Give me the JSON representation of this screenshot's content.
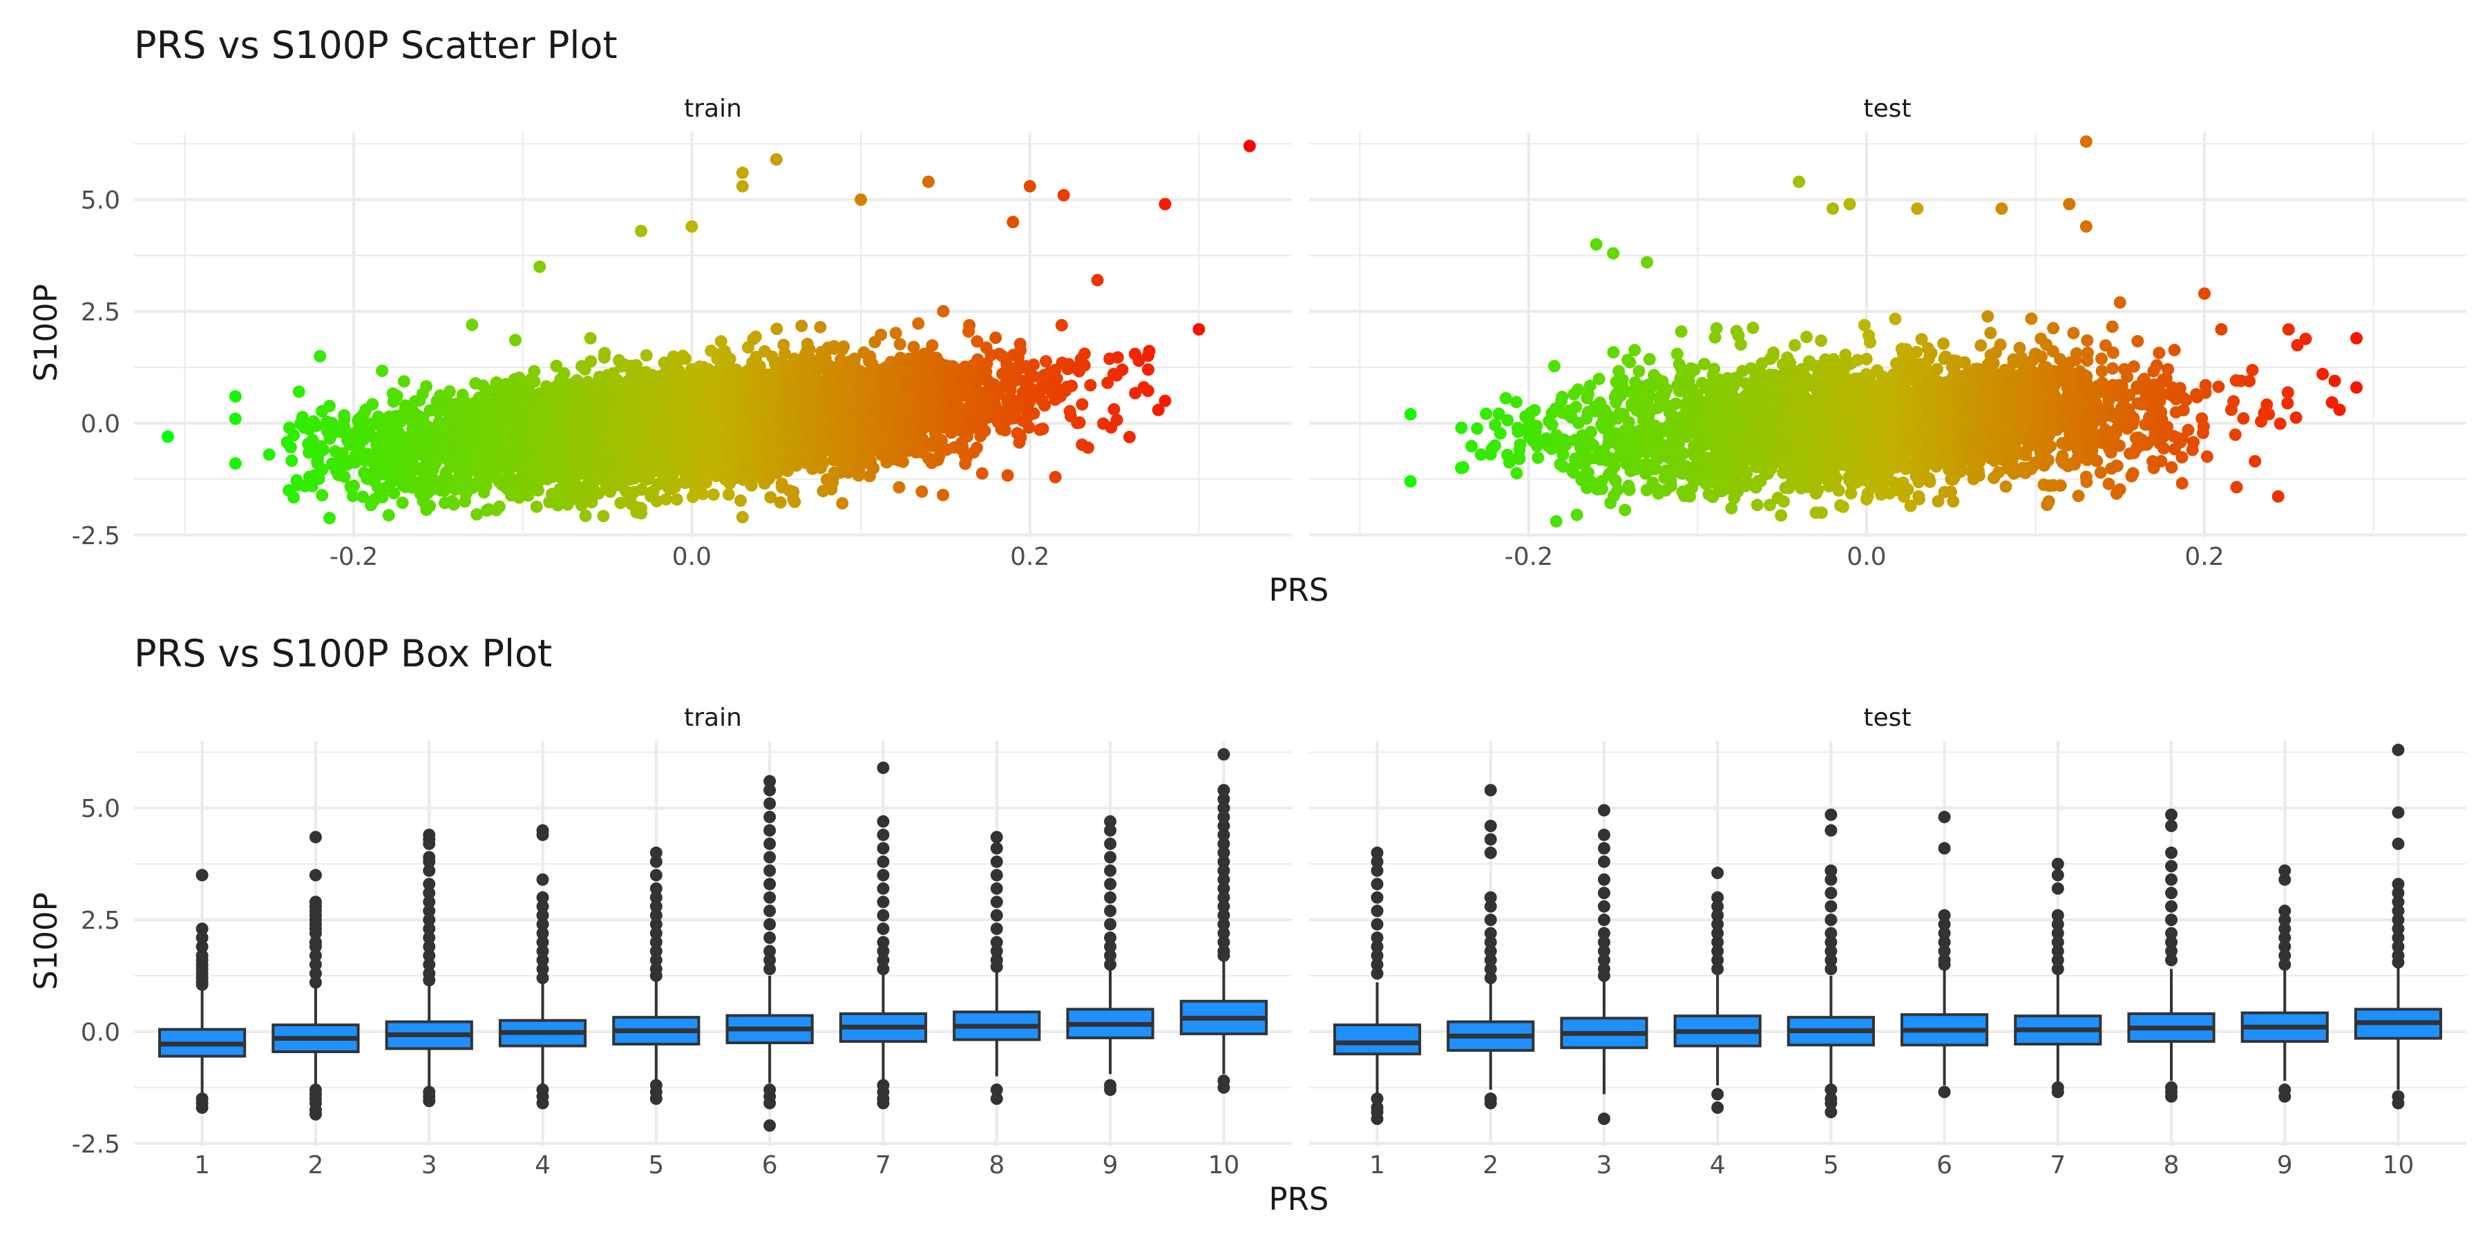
{
  "chart_data": [
    {
      "type": "scatter",
      "title": "PRS vs S100P Scatter Plot",
      "xlabel": "PRS",
      "ylabel": "S100P",
      "facets": [
        "train",
        "test"
      ],
      "xlim": [
        -0.33,
        0.355
      ],
      "ylim": [
        -2.55,
        6.5
      ],
      "x_ticks": [
        -0.2,
        0.0,
        0.2
      ],
      "x_tick_labels": [
        "-0.2",
        "0.0",
        "0.2"
      ],
      "y_ticks": [
        -2.5,
        0.0,
        2.5,
        5.0
      ],
      "y_tick_labels": [
        "-2.5",
        "0.0",
        "2.5",
        "5.0"
      ],
      "grid": true,
      "legend": "none",
      "color_scale": {
        "low": "#00ff00",
        "mid": "#c0b400",
        "high": "#ff0000",
        "domain": [
          -0.31,
          0.33
        ]
      },
      "panels": [
        {
          "name": "train",
          "approx_n": 6000,
          "bulk": {
            "slope": 3.0,
            "intercept": 0.0,
            "sd": 0.6,
            "x_mean": 0.0,
            "x_sd": 0.09
          },
          "points": [
            [
              -0.31,
              -0.3
            ],
            [
              -0.27,
              0.6
            ],
            [
              -0.27,
              0.1
            ],
            [
              -0.27,
              -0.9
            ],
            [
              -0.25,
              -0.7
            ],
            [
              -0.22,
              1.5
            ],
            [
              -0.2,
              -1.4
            ],
            [
              0.33,
              6.2
            ],
            [
              0.28,
              4.9
            ],
            [
              0.3,
              2.1
            ],
            [
              0.28,
              0.5
            ],
            [
              0.27,
              1.2
            ],
            [
              0.24,
              3.2
            ],
            [
              0.22,
              5.1
            ],
            [
              0.2,
              5.3
            ],
            [
              0.19,
              4.5
            ],
            [
              0.05,
              5.9
            ],
            [
              0.03,
              5.6
            ],
            [
              0.03,
              5.3
            ],
            [
              0.1,
              5.0
            ],
            [
              0.14,
              5.4
            ],
            [
              -0.09,
              3.5
            ],
            [
              -0.03,
              4.3
            ],
            [
              0.0,
              4.4
            ],
            [
              -0.03,
              -1.9
            ],
            [
              0.03,
              -2.1
            ],
            [
              0.06,
              -1.7
            ],
            [
              -0.13,
              2.2
            ],
            [
              -0.06,
              1.9
            ]
          ]
        },
        {
          "name": "test",
          "approx_n": 3000,
          "bulk": {
            "slope": 1.5,
            "intercept": 0.0,
            "sd": 0.7,
            "x_mean": 0.0,
            "x_sd": 0.09
          },
          "points": [
            [
              -0.27,
              0.2
            ],
            [
              -0.27,
              -1.3
            ],
            [
              -0.24,
              -1.0
            ],
            [
              -0.22,
              -0.5
            ],
            [
              0.29,
              1.9
            ],
            [
              0.29,
              0.8
            ],
            [
              0.27,
              1.1
            ],
            [
              0.28,
              0.3
            ],
            [
              0.13,
              6.3
            ],
            [
              0.12,
              4.9
            ],
            [
              0.13,
              4.4
            ],
            [
              -0.04,
              5.4
            ],
            [
              -0.02,
              4.8
            ],
            [
              -0.01,
              4.9
            ],
            [
              0.03,
              4.8
            ],
            [
              0.08,
              4.8
            ],
            [
              -0.16,
              4.0
            ],
            [
              -0.15,
              3.8
            ],
            [
              -0.13,
              3.6
            ],
            [
              0.2,
              2.9
            ],
            [
              0.15,
              2.7
            ],
            [
              0.21,
              2.1
            ],
            [
              -0.03,
              -2.0
            ],
            [
              -0.08,
              -1.9
            ],
            [
              0.0,
              -1.7
            ],
            [
              0.13,
              -1.2
            ],
            [
              0.17,
              -1.0
            ]
          ]
        }
      ]
    },
    {
      "type": "box",
      "title": "PRS vs S100P Box Plot",
      "xlabel": "PRS",
      "ylabel": "S100P",
      "facets": [
        "train",
        "test"
      ],
      "categories": [
        "1",
        "2",
        "3",
        "4",
        "5",
        "6",
        "7",
        "8",
        "9",
        "10"
      ],
      "ylim": [
        -2.55,
        6.5
      ],
      "y_ticks": [
        -2.5,
        0.0,
        2.5,
        5.0
      ],
      "y_tick_labels": [
        "-2.5",
        "0.0",
        "2.5",
        "5.0"
      ],
      "fill": "#1e90ff",
      "grid": true,
      "legend": "none",
      "panels": [
        {
          "name": "train",
          "boxes": [
            {
              "q1": -0.55,
              "median": -0.28,
              "q3": 0.05,
              "whisker_low": -1.4,
              "whisker_high": 0.95,
              "outliers_high": [
                3.5,
                2.3,
                2.1,
                1.9,
                1.7,
                1.6,
                1.5,
                1.4,
                1.3,
                1.2,
                1.1,
                1.05
              ],
              "outliers_low": [
                -1.5,
                -1.6,
                -1.7
              ]
            },
            {
              "q1": -0.45,
              "median": -0.15,
              "q3": 0.15,
              "whisker_low": -1.2,
              "whisker_high": 1.0,
              "outliers_high": [
                4.35,
                3.5,
                2.9,
                2.8,
                2.7,
                2.6,
                2.5,
                2.4,
                2.3,
                2.2,
                2.0,
                1.9,
                1.7,
                1.5,
                1.3,
                1.1
              ],
              "outliers_low": [
                -1.3,
                -1.4,
                -1.5,
                -1.6,
                -1.75,
                -1.85
              ]
            },
            {
              "q1": -0.38,
              "median": -0.07,
              "q3": 0.22,
              "whisker_low": -1.25,
              "whisker_high": 1.1,
              "outliers_high": [
                4.4,
                4.3,
                4.2,
                3.9,
                3.8,
                3.6,
                3.3,
                3.1,
                2.9,
                2.7,
                2.5,
                2.3,
                2.1,
                1.9,
                1.7,
                1.5,
                1.3,
                1.15
              ],
              "outliers_low": [
                -1.35,
                -1.45,
                -1.55
              ]
            },
            {
              "q1": -0.32,
              "median": -0.02,
              "q3": 0.25,
              "whisker_low": -1.2,
              "whisker_high": 1.1,
              "outliers_high": [
                4.5,
                4.4,
                3.4,
                3.0,
                2.8,
                2.6,
                2.4,
                2.2,
                2.0,
                1.8,
                1.6,
                1.4,
                1.2
              ],
              "outliers_low": [
                -1.3,
                -1.45,
                -1.6
              ]
            },
            {
              "q1": -0.28,
              "median": 0.02,
              "q3": 0.32,
              "whisker_low": -1.1,
              "whisker_high": 1.15,
              "outliers_high": [
                4.0,
                3.8,
                3.5,
                3.2,
                3.0,
                2.8,
                2.6,
                2.4,
                2.2,
                2.0,
                1.8,
                1.6,
                1.4,
                1.25
              ],
              "outliers_low": [
                -1.2,
                -1.35,
                -1.5
              ]
            },
            {
              "q1": -0.25,
              "median": 0.06,
              "q3": 0.36,
              "whisker_low": -1.15,
              "whisker_high": 1.25,
              "outliers_high": [
                5.6,
                5.4,
                5.1,
                4.8,
                4.5,
                4.2,
                3.9,
                3.6,
                3.3,
                3.0,
                2.7,
                2.4,
                2.1,
                1.8,
                1.6,
                1.4
              ],
              "outliers_low": [
                -1.3,
                -1.45,
                -1.6,
                -2.1
              ]
            },
            {
              "q1": -0.22,
              "median": 0.1,
              "q3": 0.4,
              "whisker_low": -1.1,
              "whisker_high": 1.3,
              "outliers_high": [
                5.9,
                4.7,
                4.4,
                4.1,
                3.8,
                3.5,
                3.2,
                2.9,
                2.6,
                2.3,
                2.0,
                1.8,
                1.6,
                1.4
              ],
              "outliers_low": [
                -1.2,
                -1.35,
                -1.5,
                -1.6
              ]
            },
            {
              "q1": -0.18,
              "median": 0.12,
              "q3": 0.44,
              "whisker_low": -1.0,
              "whisker_high": 1.35,
              "outliers_high": [
                4.35,
                4.1,
                3.8,
                3.5,
                3.2,
                2.9,
                2.6,
                2.3,
                2.0,
                1.8,
                1.6,
                1.45
              ],
              "outliers_low": [
                -1.3,
                -1.5
              ]
            },
            {
              "q1": -0.14,
              "median": 0.16,
              "q3": 0.5,
              "whisker_low": -0.95,
              "whisker_high": 1.4,
              "outliers_high": [
                4.7,
                4.5,
                4.2,
                3.9,
                3.6,
                3.3,
                3.0,
                2.7,
                2.4,
                2.1,
                1.9,
                1.7,
                1.5
              ],
              "outliers_low": [
                -1.2,
                -1.3
              ]
            },
            {
              "q1": -0.05,
              "median": 0.3,
              "q3": 0.68,
              "whisker_low": -0.95,
              "whisker_high": 1.6,
              "outliers_high": [
                6.2,
                5.4,
                5.2,
                5.0,
                4.8,
                4.6,
                4.4,
                4.2,
                4.0,
                3.8,
                3.6,
                3.4,
                3.2,
                3.0,
                2.8,
                2.6,
                2.4,
                2.2,
                2.0,
                1.8,
                1.7
              ],
              "outliers_low": [
                -1.1,
                -1.25
              ]
            }
          ]
        },
        {
          "name": "test",
          "boxes": [
            {
              "q1": -0.5,
              "median": -0.25,
              "q3": 0.15,
              "whisker_low": -1.4,
              "whisker_high": 1.1,
              "outliers_high": [
                4.0,
                3.8,
                3.6,
                3.3,
                3.0,
                2.7,
                2.4,
                2.1,
                1.9,
                1.7,
                1.5,
                1.3
              ],
              "outliers_low": [
                -1.5,
                -1.7,
                -1.8,
                -1.95
              ]
            },
            {
              "q1": -0.42,
              "median": -0.1,
              "q3": 0.22,
              "whisker_low": -1.3,
              "whisker_high": 1.1,
              "outliers_high": [
                5.4,
                4.6,
                4.3,
                4.0,
                3.0,
                2.8,
                2.5,
                2.2,
                2.0,
                1.8,
                1.6,
                1.4,
                1.2
              ],
              "outliers_low": [
                -1.5,
                -1.6
              ]
            },
            {
              "q1": -0.36,
              "median": -0.04,
              "q3": 0.3,
              "whisker_low": -1.4,
              "whisker_high": 1.2,
              "outliers_high": [
                4.95,
                4.4,
                4.1,
                3.8,
                3.4,
                3.1,
                2.8,
                2.5,
                2.2,
                2.0,
                1.8,
                1.6,
                1.4,
                1.25
              ],
              "outliers_low": [
                -1.95
              ]
            },
            {
              "q1": -0.32,
              "median": 0.0,
              "q3": 0.35,
              "whisker_low": -1.2,
              "whisker_high": 1.3,
              "outliers_high": [
                3.55,
                3.0,
                2.8,
                2.6,
                2.4,
                2.2,
                2.0,
                1.8,
                1.6,
                1.4
              ],
              "outliers_low": [
                -1.4,
                -1.7
              ]
            },
            {
              "q1": -0.3,
              "median": 0.02,
              "q3": 0.32,
              "whisker_low": -1.2,
              "whisker_high": 1.25,
              "outliers_high": [
                4.85,
                4.5,
                3.6,
                3.4,
                3.1,
                2.8,
                2.5,
                2.2,
                2.0,
                1.8,
                1.6,
                1.4
              ],
              "outliers_low": [
                -1.3,
                -1.5,
                -1.6,
                -1.8
              ]
            },
            {
              "q1": -0.3,
              "median": 0.03,
              "q3": 0.38,
              "whisker_low": -1.2,
              "whisker_high": 1.4,
              "outliers_high": [
                4.8,
                4.1,
                2.6,
                2.4,
                2.2,
                2.0,
                1.8,
                1.6,
                1.5
              ],
              "outliers_low": [
                -1.35
              ]
            },
            {
              "q1": -0.28,
              "median": 0.04,
              "q3": 0.35,
              "whisker_low": -1.15,
              "whisker_high": 1.3,
              "outliers_high": [
                3.75,
                3.5,
                3.2,
                2.6,
                2.4,
                2.2,
                2.0,
                1.8,
                1.6,
                1.4
              ],
              "outliers_low": [
                -1.25,
                -1.35
              ]
            },
            {
              "q1": -0.22,
              "median": 0.08,
              "q3": 0.4,
              "whisker_low": -1.1,
              "whisker_high": 1.4,
              "outliers_high": [
                4.85,
                4.6,
                4.0,
                3.7,
                3.4,
                3.1,
                2.8,
                2.5,
                2.2,
                2.0,
                1.8,
                1.6
              ],
              "outliers_low": [
                -1.25,
                -1.35,
                -1.45
              ]
            },
            {
              "q1": -0.22,
              "median": 0.1,
              "q3": 0.42,
              "whisker_low": -1.1,
              "whisker_high": 1.4,
              "outliers_high": [
                3.6,
                3.4,
                2.7,
                2.5,
                2.3,
                2.1,
                1.9,
                1.7,
                1.5
              ],
              "outliers_low": [
                -1.3,
                -1.45
              ]
            },
            {
              "q1": -0.15,
              "median": 0.2,
              "q3": 0.5,
              "whisker_low": -1.3,
              "whisker_high": 1.5,
              "outliers_high": [
                6.3,
                4.9,
                4.2,
                3.3,
                3.1,
                2.9,
                2.7,
                2.5,
                2.3,
                2.1,
                1.9,
                1.7,
                1.55
              ],
              "outliers_low": [
                -1.45,
                -1.6
              ]
            }
          ]
        }
      ]
    }
  ]
}
